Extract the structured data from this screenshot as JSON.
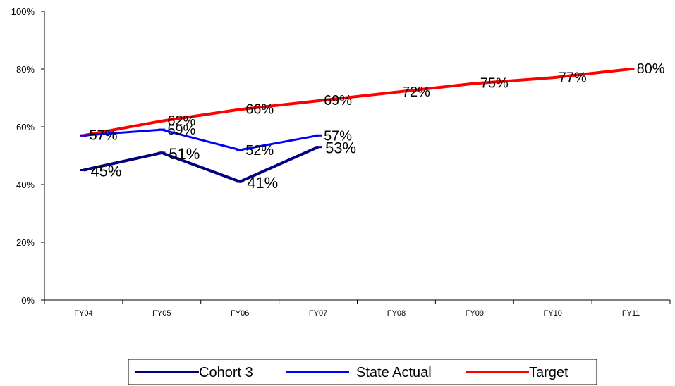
{
  "chart_data": {
    "type": "line",
    "categories": [
      "FY04",
      "FY05",
      "FY06",
      "FY07",
      "FY08",
      "FY09",
      "FY10",
      "FY11"
    ],
    "ylim": [
      0,
      100
    ],
    "yticks": [
      "0%",
      "20%",
      "40%",
      "60%",
      "80%",
      "100%"
    ],
    "grid": false,
    "legend_position": "bottom",
    "series": [
      {
        "name": "Cohort 3",
        "color": "#000080",
        "values": [
          45,
          51,
          41,
          53,
          null,
          null,
          null,
          null
        ],
        "labels": [
          "45%",
          "51%",
          "41%",
          "53%"
        ]
      },
      {
        "name": "State Actual",
        "color": "#0000ff",
        "values": [
          57,
          59,
          52,
          57,
          null,
          null,
          null,
          null
        ],
        "labels": [
          "57%",
          "59%",
          "52%",
          "57%"
        ]
      },
      {
        "name": "Target",
        "color": "#ff0000",
        "values": [
          57,
          62,
          66,
          69,
          72,
          75,
          77,
          80
        ],
        "labels": [
          "57%",
          "62%",
          "66%",
          "69%",
          "72%",
          "75%",
          "77%",
          "80%"
        ]
      }
    ]
  }
}
